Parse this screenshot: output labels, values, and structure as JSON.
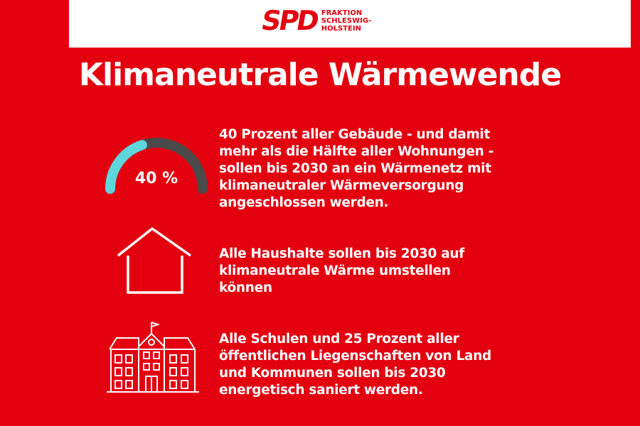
{
  "logo": {
    "mark": "SPD",
    "line1": "FRAKTION",
    "line2": "SCHLESWIG-",
    "line3": "HOLSTEIN"
  },
  "title": "Klimaneutrale Wärmewende",
  "items": [
    {
      "icon": "gauge-icon",
      "gauge_label": "40 %",
      "gauge_fraction": 0.4,
      "text_lines": [
        "40 Prozent aller Gebäude - und damit",
        "mehr als die Hälfte aller Wohnungen -",
        "sollen bis 2030 an ein Wärmenetz mit",
        "klimaneutraler Wärmeversorgung",
        "angeschlossen werden."
      ]
    },
    {
      "icon": "house-icon",
      "text_lines": [
        "Alle Haushalte sollen bis 2030 auf",
        "klimaneutrale Wärme umstellen",
        "können"
      ]
    },
    {
      "icon": "school-building-icon",
      "text_lines": [
        "Alle Schulen und 25 Prozent aller",
        "öffentlichen Liegenschaften von Land",
        "und Kommunen sollen bis 2030",
        "energetisch saniert werden."
      ]
    }
  ],
  "colors": {
    "background": "#e3000f",
    "gauge_fill": "#5ed6dc",
    "gauge_track": "#4a4a4a",
    "text": "#ffffff"
  }
}
